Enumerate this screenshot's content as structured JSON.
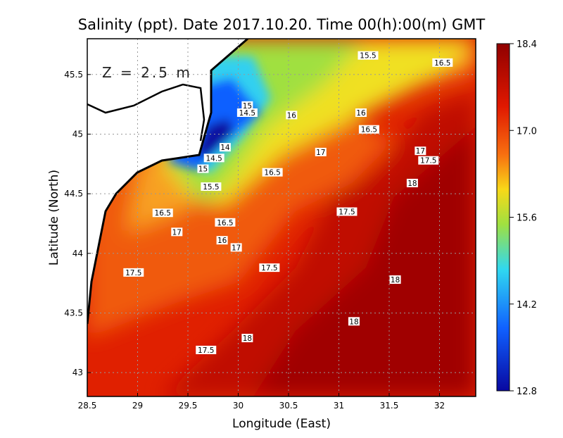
{
  "title": "Salinity (ppt). Date 2017.10.20. Time 00(h):00(m) GMT",
  "depth_label": "Z = 2.5 m",
  "chart_data": {
    "type": "heatmap",
    "title": "Salinity (ppt). Date 2017.10.20. Time 00(h):00(m) GMT",
    "xlabel": "Longitude (East)",
    "ylabel": "Latitude (North)",
    "xlim": [
      28.5,
      32.36
    ],
    "ylim": [
      42.8,
      45.8
    ],
    "x_ticks": [
      28.5,
      29,
      29.5,
      30,
      30.5,
      31,
      31.5,
      32
    ],
    "x_tick_labels": [
      "28.5",
      "29",
      "29.5",
      "30",
      "30.5",
      "31",
      "31.5",
      "32"
    ],
    "y_ticks": [
      43,
      43.5,
      44,
      44.5,
      45,
      45.5
    ],
    "y_tick_labels": [
      "43",
      "43.5",
      "44",
      "44.5",
      "45",
      "45.5"
    ],
    "grid": true,
    "colorbar": {
      "range": [
        12.8,
        18.4
      ],
      "tick_labels": [
        "18.4",
        "17.0",
        "15.6",
        "14.2",
        "12.8"
      ],
      "colors": [
        "#900000",
        "#e01800",
        "#f87010",
        "#f8d818",
        "#a0e040",
        "#30d8f0",
        "#1060ff",
        "#0808a0"
      ]
    },
    "contour_labels": [
      {
        "text": "15.5",
        "lon": 31.29,
        "lat": 45.66
      },
      {
        "text": "16.5",
        "lon": 32.03,
        "lat": 45.6
      },
      {
        "text": "15",
        "lon": 30.09,
        "lat": 45.24
      },
      {
        "text": "14.5",
        "lon": 30.09,
        "lat": 45.18
      },
      {
        "text": "16",
        "lon": 30.53,
        "lat": 45.16
      },
      {
        "text": "16",
        "lon": 31.22,
        "lat": 45.18
      },
      {
        "text": "16.5",
        "lon": 31.3,
        "lat": 45.04
      },
      {
        "text": "14",
        "lon": 29.87,
        "lat": 44.89
      },
      {
        "text": "17",
        "lon": 30.82,
        "lat": 44.85
      },
      {
        "text": "17",
        "lon": 31.81,
        "lat": 44.86
      },
      {
        "text": "17.5",
        "lon": 31.89,
        "lat": 44.78
      },
      {
        "text": "14.5",
        "lon": 29.76,
        "lat": 44.8
      },
      {
        "text": "15",
        "lon": 29.65,
        "lat": 44.71
      },
      {
        "text": "16.5",
        "lon": 30.34,
        "lat": 44.68
      },
      {
        "text": "18",
        "lon": 31.73,
        "lat": 44.59
      },
      {
        "text": "15.5",
        "lon": 29.73,
        "lat": 44.56
      },
      {
        "text": "16.5",
        "lon": 29.25,
        "lat": 44.34
      },
      {
        "text": "17.5",
        "lon": 31.08,
        "lat": 44.35
      },
      {
        "text": "16.5",
        "lon": 29.87,
        "lat": 44.26
      },
      {
        "text": "17",
        "lon": 29.39,
        "lat": 44.18
      },
      {
        "text": "16",
        "lon": 29.84,
        "lat": 44.11
      },
      {
        "text": "17",
        "lon": 29.98,
        "lat": 44.05
      },
      {
        "text": "17.5",
        "lon": 28.96,
        "lat": 43.84
      },
      {
        "text": "17.5",
        "lon": 30.31,
        "lat": 43.88
      },
      {
        "text": "18",
        "lon": 31.56,
        "lat": 43.78
      },
      {
        "text": "18",
        "lon": 31.15,
        "lat": 43.43
      },
      {
        "text": "18",
        "lon": 30.09,
        "lat": 43.29
      },
      {
        "text": "17.5",
        "lon": 29.68,
        "lat": 43.19
      }
    ]
  }
}
